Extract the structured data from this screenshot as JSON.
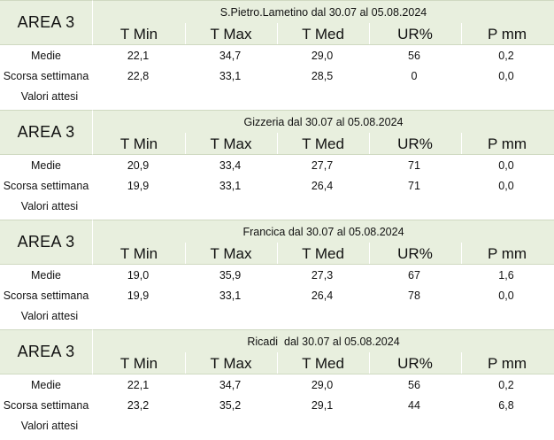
{
  "headers": [
    "T Min",
    "T Max",
    "T Med",
    "UR%",
    "P mm"
  ],
  "row_labels": [
    "Medie",
    "Scorsa settimana",
    "Valori attesi"
  ],
  "blocks": [
    {
      "area": "AREA 3",
      "title": "S.Pietro.Lametino dal 30.07 al 05.08.2024",
      "medie": [
        "22,1",
        "34,7",
        "29,0",
        "56",
        "0,2"
      ],
      "scorsa": [
        "22,8",
        "33,1",
        "28,5",
        "0",
        "0,0"
      ]
    },
    {
      "area": "AREA 3",
      "title": "Gizzeria dal 30.07 al 05.08.2024",
      "medie": [
        "20,9",
        "33,4",
        "27,7",
        "71",
        "0,0"
      ],
      "scorsa": [
        "19,9",
        "33,1",
        "26,4",
        "71",
        "0,0"
      ]
    },
    {
      "area": "AREA 3",
      "title": "Francica dal 30.07 al 05.08.2024",
      "medie": [
        "19,0",
        "35,9",
        "27,3",
        "67",
        "1,6"
      ],
      "scorsa": [
        "19,9",
        "33,1",
        "26,4",
        "78",
        "0,0"
      ]
    },
    {
      "area": "AREA 3",
      "title": "Ricadi  dal 30.07 al 05.08.2024",
      "medie": [
        "22,1",
        "34,7",
        "29,0",
        "56",
        "0,2"
      ],
      "scorsa": [
        "23,2",
        "35,2",
        "29,1",
        "44",
        "6,8"
      ]
    }
  ],
  "colors": {
    "header_bg": "#e8efde",
    "border": "#cfd9c1",
    "text": "#111111"
  }
}
